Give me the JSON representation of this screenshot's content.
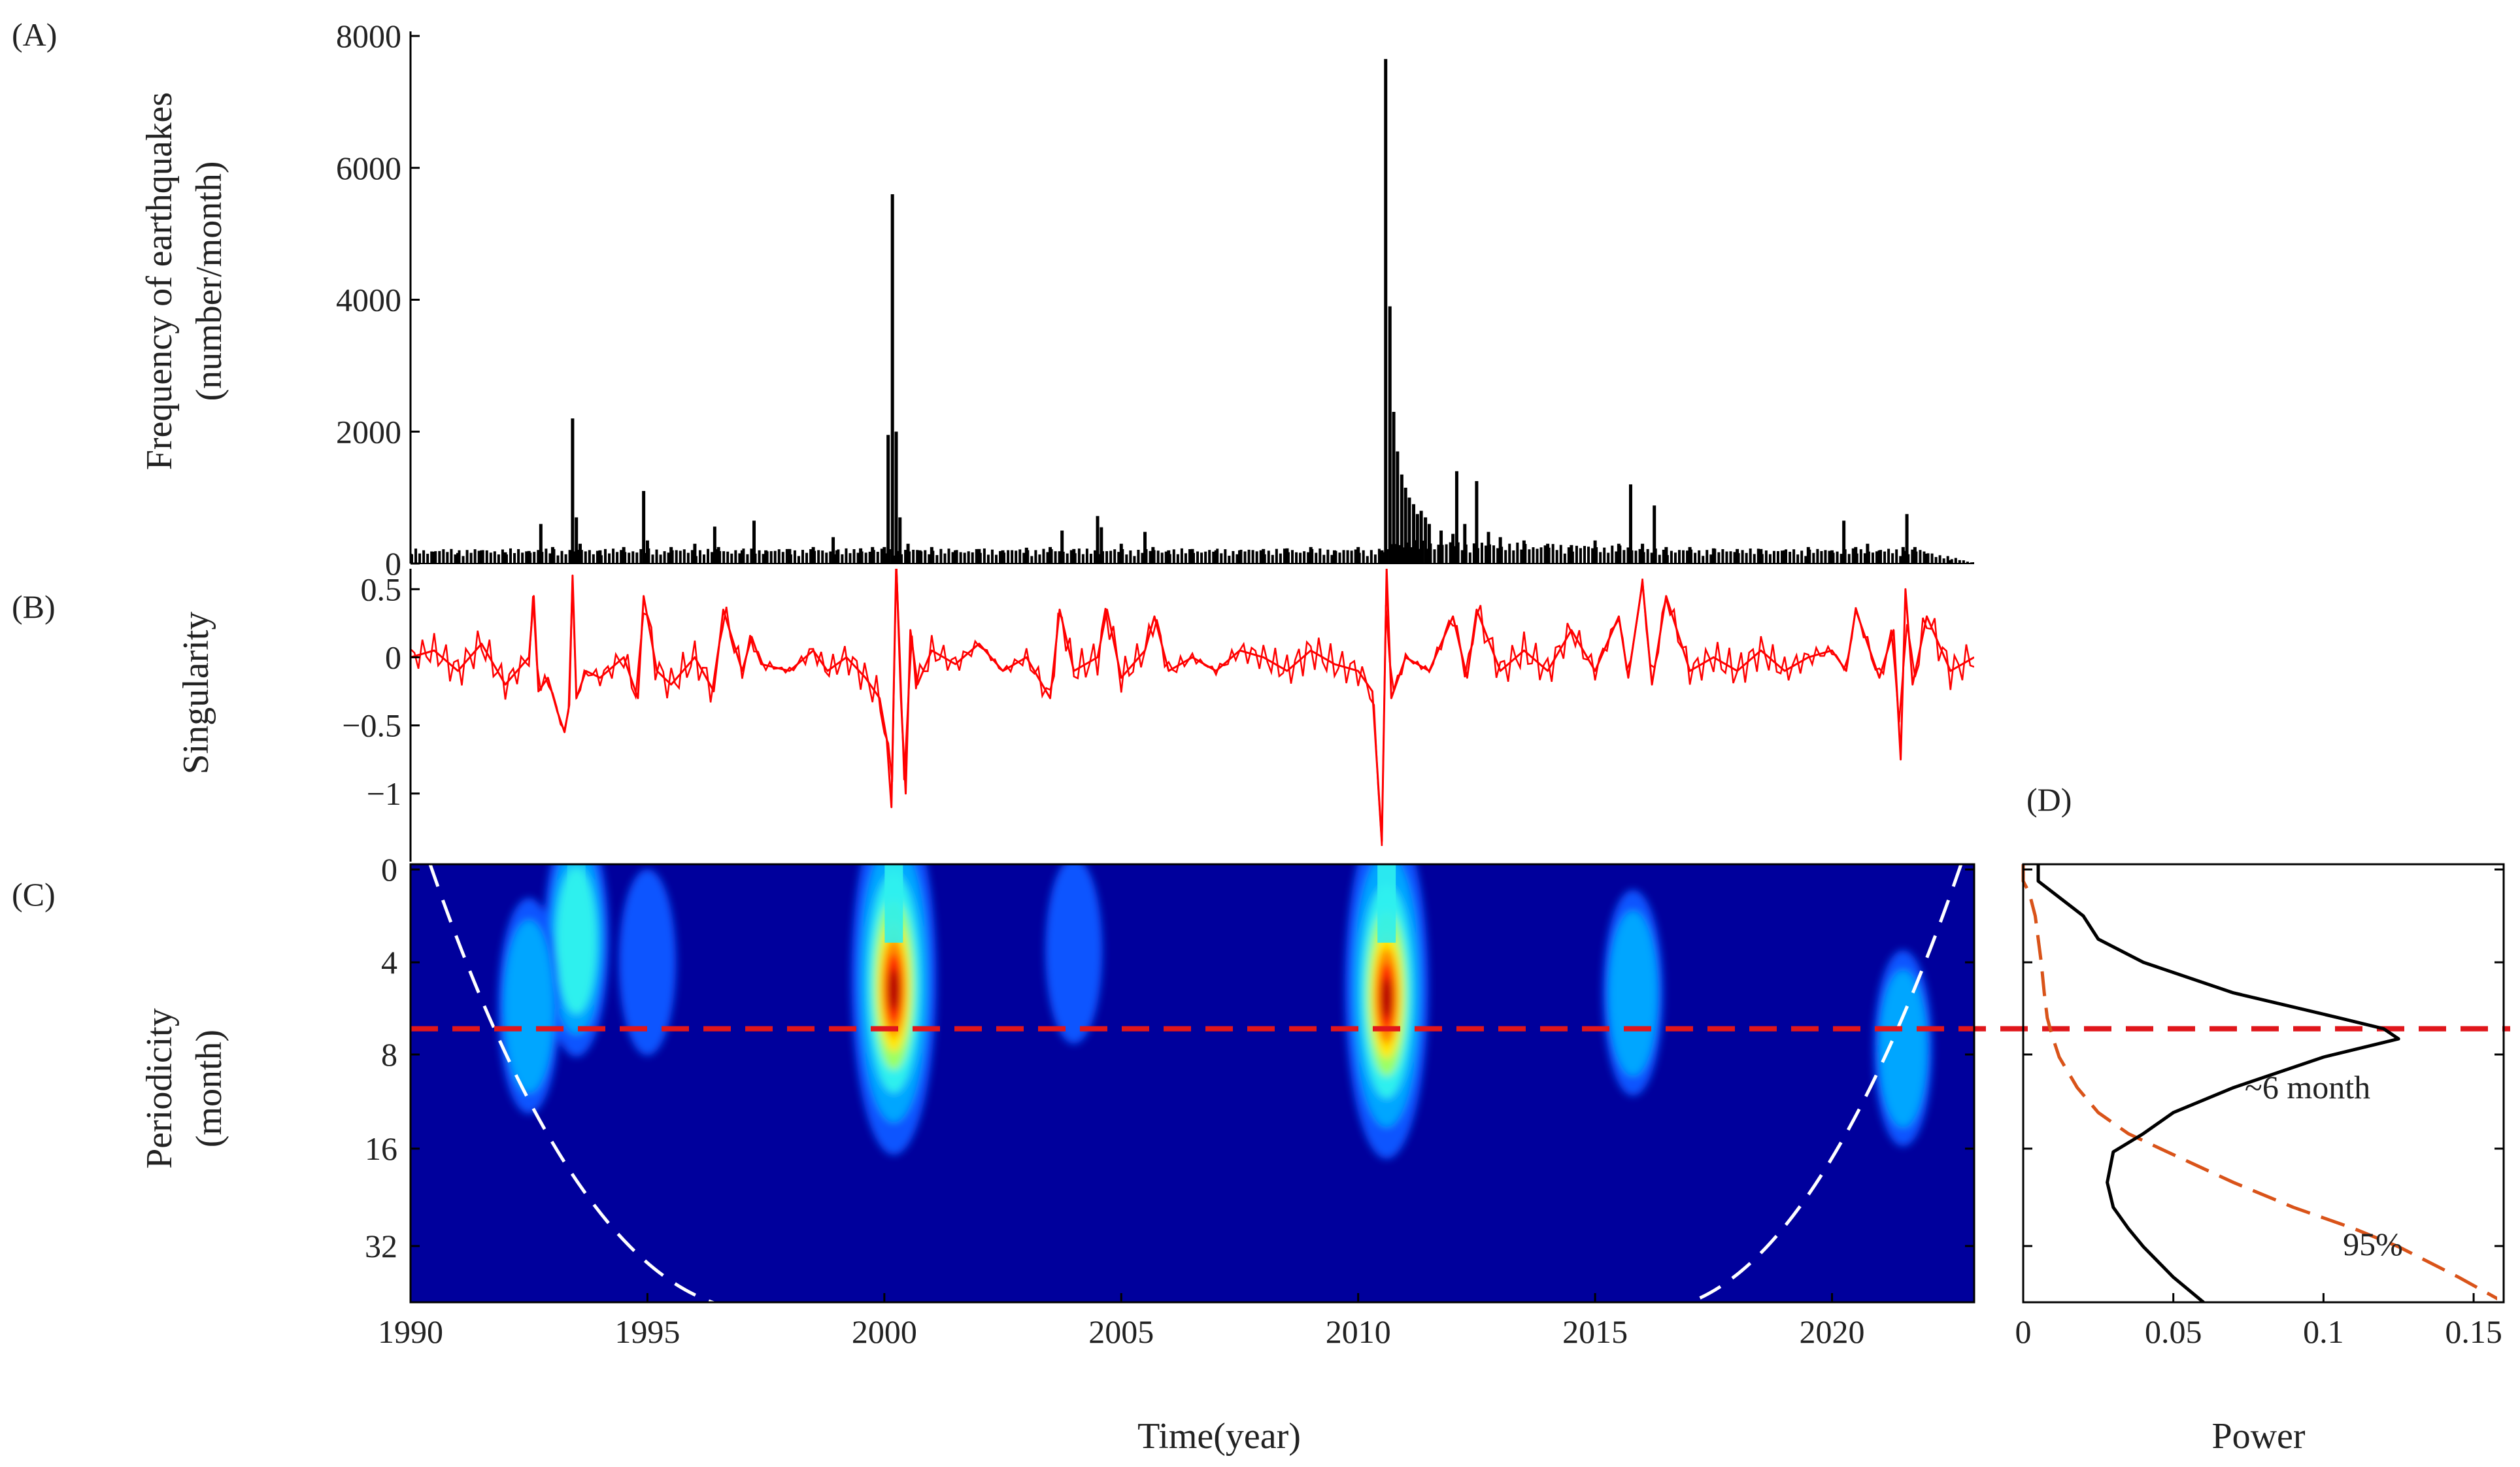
{
  "panels": {
    "A": {
      "letter": "(A)",
      "ylabel_line1": "Frequency of earthquakes",
      "ylabel_line2": "(number/month)"
    },
    "B": {
      "letter": "(B)",
      "ylabel": "Singularity"
    },
    "C": {
      "letter": "(C)",
      "ylabel_line1": "Periodicity",
      "ylabel_line2": "(month)"
    },
    "D": {
      "letter": "(D)"
    }
  },
  "xlabel_main": "Time(year)",
  "xlabel_power": "Power",
  "annotations": {
    "six_month": "~6 month",
    "sig95": "95%"
  },
  "colors": {
    "bars": "#000000",
    "singularity": "#ff0000",
    "wavelet_bg": "#00009c",
    "cone": "#ffffff",
    "dashed_line": "#e0161b",
    "power": "#000000",
    "sig95": "#d95319"
  },
  "chart_data": [
    {
      "type": "bar",
      "panel": "A",
      "ylabel": "Frequency of earthquakes (number/month)",
      "xlim": [
        1990,
        2023
      ],
      "ylim": [
        0,
        8000
      ],
      "yticks": [
        "0",
        "2000",
        "4000",
        "6000",
        "8000"
      ],
      "x": [
        1990.0,
        1990.5,
        1991.0,
        1991.5,
        1992.0,
        1992.5,
        1992.75,
        1993.0,
        1993.42,
        1993.5,
        1993.58,
        1994.0,
        1994.5,
        1994.92,
        1995.0,
        1995.5,
        1996.0,
        1996.42,
        1996.5,
        1997.0,
        1997.25,
        1997.5,
        1998.0,
        1998.5,
        1998.92,
        1999.0,
        1999.5,
        1999.75,
        2000.0,
        2000.08,
        2000.17,
        2000.25,
        2000.33,
        2000.5,
        2000.75,
        2001.0,
        2001.5,
        2002.0,
        2002.5,
        2003.0,
        2003.5,
        2003.75,
        2004.0,
        2004.5,
        2004.58,
        2005.0,
        2005.5,
        2005.67,
        2006.0,
        2006.5,
        2007.0,
        2007.5,
        2008.0,
        2008.5,
        2009.0,
        2009.5,
        2010.0,
        2010.5,
        2010.58,
        2010.67,
        2010.75,
        2010.83,
        2010.92,
        2011.0,
        2011.08,
        2011.17,
        2011.25,
        2011.33,
        2011.42,
        2011.5,
        2011.75,
        2012.0,
        2012.08,
        2012.25,
        2012.5,
        2012.75,
        2013.0,
        2013.5,
        2014.0,
        2014.5,
        2015.0,
        2015.5,
        2015.75,
        2016.0,
        2016.25,
        2016.5,
        2017.0,
        2017.5,
        2018.0,
        2018.5,
        2019.0,
        2019.5,
        2020.0,
        2020.25,
        2020.5,
        2020.75,
        2021.0,
        2021.5,
        2021.58,
        2021.75,
        2022.0,
        2022.5,
        2023.0
      ],
      "values": [
        150,
        180,
        160,
        200,
        170,
        190,
        600,
        250,
        2200,
        700,
        300,
        200,
        250,
        1100,
        350,
        250,
        300,
        560,
        250,
        200,
        650,
        200,
        220,
        250,
        400,
        200,
        230,
        250,
        250,
        1950,
        5600,
        2000,
        700,
        300,
        200,
        250,
        200,
        220,
        200,
        240,
        250,
        500,
        220,
        720,
        550,
        300,
        480,
        250,
        200,
        220,
        200,
        200,
        220,
        230,
        250,
        200,
        250,
        200,
        7650,
        3900,
        2300,
        1700,
        1350,
        1150,
        1000,
        900,
        750,
        800,
        700,
        600,
        500,
        450,
        1400,
        600,
        1250,
        480,
        400,
        350,
        300,
        280,
        350,
        300,
        1200,
        300,
        880,
        250,
        250,
        230,
        220,
        220,
        200,
        250,
        200,
        650,
        250,
        300,
        200,
        250,
        750,
        250,
        150,
        50,
        20
      ]
    },
    {
      "type": "line",
      "panel": "B",
      "ylabel": "Singularity",
      "xlim": [
        1990,
        2023
      ],
      "ylim": [
        -1.5,
        0.65
      ],
      "yticks": [
        "0.5",
        "0",
        "−0.5",
        "−1"
      ],
      "x": [
        1990.0,
        1990.5,
        1991.0,
        1991.5,
        1992.0,
        1992.5,
        1992.6,
        1992.7,
        1992.9,
        1993.1,
        1993.25,
        1993.35,
        1993.42,
        1993.5,
        1993.7,
        1994.0,
        1994.5,
        1994.8,
        1994.92,
        1995.2,
        1995.5,
        1996.0,
        1996.4,
        1996.6,
        1997.0,
        1997.2,
        1997.4,
        1998.0,
        1998.5,
        1998.8,
        1999.2,
        1999.6,
        1999.9,
        2000.05,
        2000.15,
        2000.25,
        2000.35,
        2000.45,
        2000.55,
        2000.7,
        2001.0,
        2001.5,
        2002.0,
        2002.5,
        2003.0,
        2003.5,
        2003.7,
        2004.0,
        2004.5,
        2004.7,
        2005.0,
        2005.5,
        2005.7,
        2006.0,
        2006.5,
        2007.0,
        2007.5,
        2008.0,
        2008.5,
        2009.0,
        2009.5,
        2010.0,
        2010.3,
        2010.5,
        2010.6,
        2010.7,
        2010.85,
        2011.0,
        2011.5,
        2012.0,
        2012.3,
        2012.5,
        2013.0,
        2013.5,
        2014.0,
        2014.5,
        2015.0,
        2015.5,
        2015.7,
        2016.0,
        2016.2,
        2016.5,
        2017.0,
        2017.5,
        2018.0,
        2018.5,
        2019.0,
        2019.5,
        2020.0,
        2020.3,
        2020.5,
        2021.0,
        2021.3,
        2021.45,
        2021.55,
        2021.7,
        2022.0,
        2022.5,
        2023.0
      ],
      "values": [
        0.0,
        0.05,
        -0.1,
        0.1,
        -0.2,
        0.0,
        0.45,
        -0.25,
        -0.15,
        -0.4,
        -0.55,
        -0.35,
        0.6,
        -0.3,
        -0.1,
        -0.15,
        0.0,
        -0.3,
        0.45,
        -0.1,
        -0.2,
        0.0,
        -0.25,
        0.35,
        -0.1,
        0.15,
        -0.05,
        -0.1,
        0.05,
        -0.1,
        0.0,
        -0.15,
        -0.3,
        -0.6,
        -1.1,
        0.7,
        -0.3,
        -1.0,
        0.2,
        -0.2,
        0.05,
        -0.05,
        0.1,
        -0.1,
        0.0,
        -0.3,
        0.35,
        -0.1,
        0.0,
        0.35,
        -0.15,
        0.05,
        0.3,
        -0.1,
        0.0,
        -0.1,
        0.05,
        0.0,
        -0.1,
        0.05,
        -0.05,
        -0.1,
        -0.25,
        -1.35,
        0.65,
        -0.3,
        -0.15,
        0.0,
        -0.1,
        0.3,
        -0.15,
        0.35,
        -0.1,
        0.05,
        -0.1,
        0.2,
        -0.1,
        0.3,
        -0.15,
        0.55,
        -0.2,
        0.45,
        -0.1,
        0.0,
        -0.1,
        0.05,
        -0.1,
        0.0,
        0.05,
        -0.1,
        0.35,
        -0.15,
        0.2,
        -0.75,
        0.5,
        -0.2,
        0.3,
        -0.1,
        0.0
      ]
    },
    {
      "type": "heatmap",
      "panel": "C",
      "ylabel": "Periodicity (month)",
      "xlabel": "Time(year)",
      "xlim": [
        1990,
        2023
      ],
      "xticks": [
        "1990",
        "1995",
        "2000",
        "2005",
        "2010",
        "2015",
        "2020"
      ],
      "yticks": [
        "0",
        "4",
        "8",
        "16",
        "32"
      ],
      "dashed_period_month": 6.5,
      "hotspots": [
        {
          "year": 1993.5,
          "period_month": 3.0,
          "strength": 0.4
        },
        {
          "year": 1992.5,
          "period_month": 5.5,
          "strength": 0.3
        },
        {
          "year": 2000.2,
          "period_month": 4.5,
          "strength": 1.0
        },
        {
          "year": 2010.6,
          "period_month": 4.8,
          "strength": 0.95
        },
        {
          "year": 2015.8,
          "period_month": 5.0,
          "strength": 0.25
        },
        {
          "year": 2021.5,
          "period_month": 7.5,
          "strength": 0.2
        },
        {
          "year": 2004.0,
          "period_month": 3.5,
          "strength": 0.15
        },
        {
          "year": 1995.0,
          "period_month": 4.0,
          "strength": 0.15
        }
      ]
    },
    {
      "type": "line",
      "panel": "D",
      "xlabel": "Power",
      "xlim": [
        0,
        0.16
      ],
      "xticks": [
        "0",
        "0.05",
        "0.1",
        "0.15"
      ],
      "power": {
        "period_month": [
          0.5,
          1,
          2,
          3,
          4,
          5,
          6,
          6.5,
          7,
          8,
          10,
          12,
          14,
          16,
          20,
          24,
          28,
          32,
          40,
          48,
          56,
          64
        ],
        "values": [
          0.005,
          0.01,
          0.02,
          0.025,
          0.04,
          0.07,
          0.105,
          0.12,
          0.125,
          0.1,
          0.07,
          0.05,
          0.04,
          0.03,
          0.028,
          0.03,
          0.035,
          0.04,
          0.05,
          0.06,
          0.065,
          0.04
        ]
      },
      "sig95": {
        "period_month": [
          0.5,
          1,
          2,
          3,
          4,
          5,
          6,
          6.5,
          7,
          8,
          10,
          12,
          14,
          16,
          20,
          24,
          28,
          32,
          40,
          48,
          56,
          64
        ],
        "values": [
          0.0,
          0.002,
          0.004,
          0.005,
          0.006,
          0.007,
          0.008,
          0.009,
          0.01,
          0.012,
          0.018,
          0.025,
          0.035,
          0.048,
          0.07,
          0.09,
          0.11,
          0.125,
          0.145,
          0.16,
          0.165,
          0.17
        ]
      }
    }
  ]
}
